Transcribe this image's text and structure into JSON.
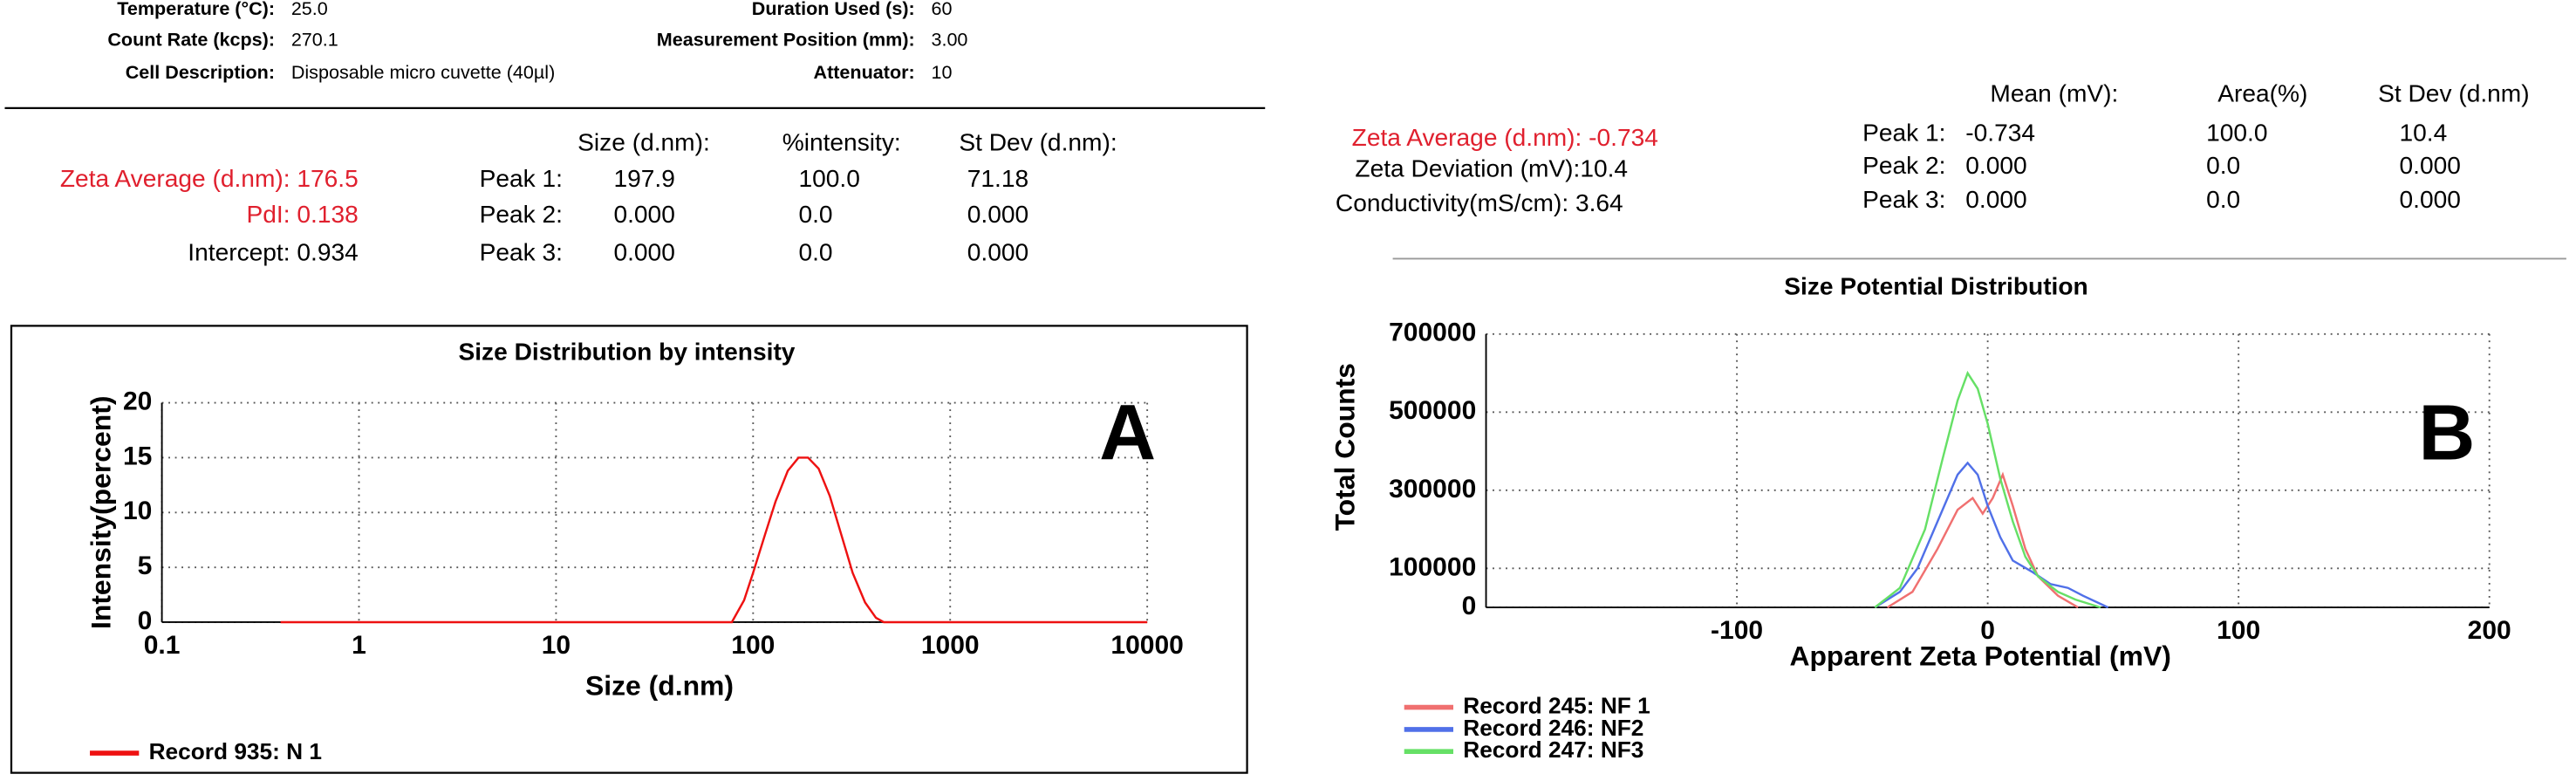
{
  "info": {
    "rows": [
      [
        "Temperature (°C):",
        "25.0",
        "Duration Used (s):",
        "60"
      ],
      [
        "Count Rate (kcps):",
        "270.1",
        "Measurement Position (mm):",
        "3.00"
      ],
      [
        "Cell Description:",
        "Disposable micro cuvette (40µl)",
        "Attenuator:",
        "10"
      ]
    ]
  },
  "results_a": {
    "lines": [
      "Zeta Average (d.nm): 176.5",
      "PdI: 0.138",
      "Intercept: 0.934"
    ],
    "headers": [
      "Size (d.nm):",
      "%intensity:",
      "St Dev (d.nm):"
    ],
    "rows": [
      [
        "Peak 1:",
        "197.9",
        "100.0",
        "71.18"
      ],
      [
        "Peak 2:",
        "0.000",
        "0.0",
        "0.000"
      ],
      [
        "Peak 3:",
        "0.000",
        "0.0",
        "0.000"
      ]
    ]
  },
  "results_b": {
    "lines": [
      "Zeta Average (d.nm): -0.734",
      "Zeta Deviation (mV):10.4",
      "Conductivity(mS/cm): 3.64"
    ],
    "headers": [
      "Mean (mV):",
      "Area(%)",
      "St Dev (d.nm)"
    ],
    "rows": [
      [
        "Peak 1:",
        "-0.734",
        "100.0",
        "10.4"
      ],
      [
        "Peak 2:",
        "0.000",
        "0.0",
        "0.000"
      ],
      [
        "Peak 3:",
        "0.000",
        "0.0",
        "0.000"
      ]
    ]
  },
  "chart_data": [
    {
      "type": "line",
      "title": "Size Distribution by intensity",
      "annotation": "A",
      "x_label": "Size (d.nm)",
      "y_label": "Intensity(percent)",
      "xscale": "log",
      "xlim": [
        0.1,
        10000
      ],
      "xticks": [
        0.1,
        1,
        10,
        100,
        1000,
        10000
      ],
      "ylim": [
        0,
        20
      ],
      "yticks": [
        0,
        5,
        10,
        15,
        20
      ],
      "grid": true,
      "series": [
        {
          "name": "Record 935: N 1",
          "color": "#ee1111",
          "x": [
            0.4,
            1,
            10,
            68,
            78,
            90,
            100,
            115,
            130,
            150,
            170,
            190,
            215,
            245,
            280,
            320,
            370,
            420,
            460,
            1000,
            10000
          ],
          "values": [
            0,
            0,
            0,
            0,
            0,
            2,
            4.5,
            8,
            11,
            13.8,
            15,
            15,
            14,
            11.5,
            8,
            4.5,
            1.8,
            0.4,
            0,
            0,
            0
          ]
        }
      ]
    },
    {
      "type": "line",
      "title": "Size Potential Distribution",
      "annotation": "B",
      "x_label": "Apparent Zeta Potential (mV)",
      "y_label": "Total Counts",
      "xlim": [
        -200,
        200
      ],
      "xticks": [
        -100,
        0,
        100,
        200
      ],
      "ylim": [
        0,
        700000
      ],
      "yticks": [
        0,
        100000,
        300000,
        500000,
        700000
      ],
      "grid": true,
      "series": [
        {
          "name": "Record 245: NF 1",
          "color": "#f07070",
          "x": [
            -40,
            -30,
            -20,
            -12,
            -6,
            -2,
            2,
            6,
            10,
            15,
            20,
            28,
            36
          ],
          "values": [
            0,
            40000,
            150000,
            250000,
            280000,
            240000,
            280000,
            340000,
            260000,
            150000,
            80000,
            30000,
            0
          ]
        },
        {
          "name": "Record 246: NF2",
          "color": "#5070e8",
          "x": [
            -45,
            -35,
            -28,
            -20,
            -12,
            -8,
            -4,
            0,
            5,
            10,
            18,
            25,
            32,
            38,
            48
          ],
          "values": [
            0,
            40000,
            100000,
            220000,
            340000,
            370000,
            340000,
            260000,
            180000,
            120000,
            90000,
            60000,
            50000,
            30000,
            0
          ]
        },
        {
          "name": "Record 247: NF3",
          "color": "#66e066",
          "x": [
            -45,
            -35,
            -25,
            -18,
            -12,
            -8,
            -4,
            0,
            5,
            10,
            15,
            20,
            28,
            35,
            45
          ],
          "values": [
            0,
            50000,
            200000,
            380000,
            530000,
            600000,
            560000,
            470000,
            330000,
            220000,
            130000,
            80000,
            40000,
            20000,
            0
          ]
        }
      ]
    }
  ]
}
